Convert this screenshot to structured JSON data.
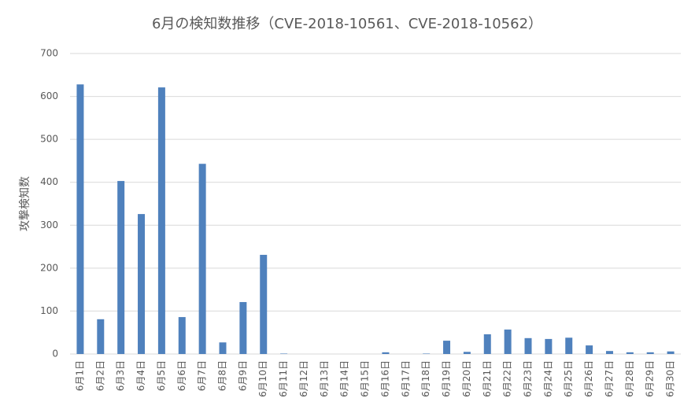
{
  "chart_data": {
    "type": "bar",
    "title": "6月の検知数推移（CVE-2018-10561、CVE-2018-10562）",
    "y_label": "攻撃検知数",
    "categories": [
      "6月1日",
      "6月2日",
      "6月3日",
      "6月4日",
      "6月5日",
      "6月6日",
      "6月7日",
      "6月8日",
      "6月9日",
      "6月10日",
      "6月11日",
      "6月12日",
      "6月13日",
      "6月14日",
      "6月15日",
      "6月16日",
      "6月17日",
      "6月18日",
      "6月19日",
      "6月20日",
      "6月21日",
      "6月22日",
      "6月23日",
      "6月24日",
      "6月25日",
      "6月26日",
      "6月27日",
      "6月28日",
      "6月29日",
      "6月30日"
    ],
    "values": [
      628,
      81,
      403,
      326,
      621,
      86,
      443,
      27,
      121,
      231,
      1,
      0,
      0,
      0,
      0,
      4,
      0,
      1,
      31,
      5,
      46,
      57,
      37,
      35,
      38,
      20,
      7,
      4,
      4,
      6
    ],
    "color": "#4f81bd",
    "ylim": [
      0,
      700
    ],
    "yticks": [
      0,
      100,
      200,
      300,
      400,
      500,
      600,
      700
    ],
    "grid": true
  }
}
